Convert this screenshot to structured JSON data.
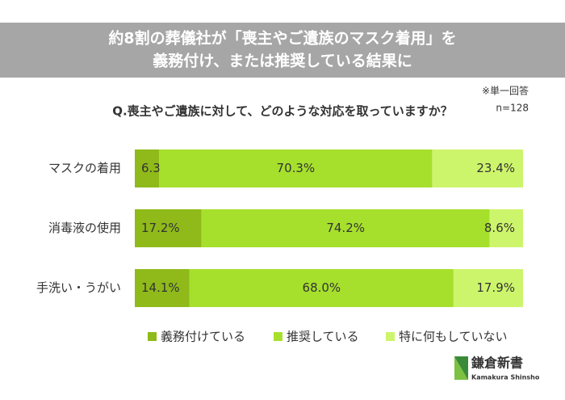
{
  "chart_data": {
    "type": "stacked-bar-horizontal",
    "title": [
      "約8割の葬儀社が「喪主やご遺族のマスク着用」を",
      "義務付け、または推奨している結果に"
    ],
    "note": "※単一回答",
    "subtitle": "Q.喪主やご遺族に対して、どのような対応を取っていますか？",
    "sample": "n=128",
    "categories": [
      "マスクの着用",
      "消毒液の使用",
      "手洗い・うがい"
    ],
    "series": [
      {
        "name": "義務付けている",
        "color": "#8fba1a",
        "values": [
          6.3,
          17.2,
          14.1
        ],
        "value_labels": [
          "6.3%",
          "17.2%",
          "14.1%"
        ]
      },
      {
        "name": "推奨している",
        "color": "#a6e02c",
        "values": [
          70.3,
          74.2,
          68.0
        ],
        "value_labels": [
          "70.3%",
          "74.2%",
          "68.0%"
        ]
      },
      {
        "name": "特に何もしていない",
        "color": "#cdf56c",
        "values": [
          23.4,
          8.6,
          17.9
        ],
        "value_labels": [
          "23.4%",
          "8.6%",
          "17.9%"
        ]
      }
    ],
    "xlim": [
      0,
      100
    ]
  },
  "logo": {
    "name": "鎌倉新書",
    "subtitle": "Kamakura Shinsho"
  }
}
